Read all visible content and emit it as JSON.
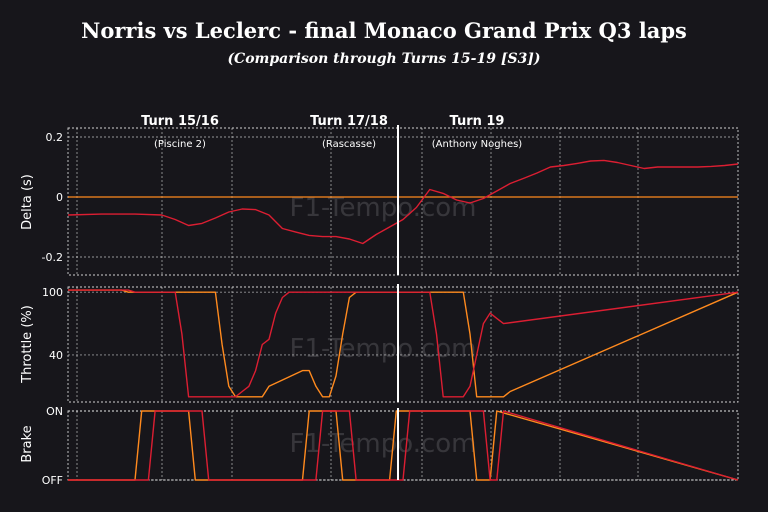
{
  "title": "Norris vs Leclerc - final Monaco Grand Prix Q3 laps",
  "subtitle": "(Comparison through Turns 15-19 [S3])",
  "watermark": "F1-Tempo.com",
  "colors": {
    "background": "#17161b",
    "norris": "#ff8a1e",
    "leclerc": "#dc1e32",
    "delta_zero": "#ff8a1e"
  },
  "chart_data": [
    {
      "type": "line",
      "panel": "delta",
      "ylabel": "Delta (s)",
      "yticks": [
        0.2,
        0,
        -0.2
      ],
      "ytick_labels": [
        "0.2",
        "0",
        "-0.2"
      ],
      "ylim": [
        -0.26,
        0.23
      ],
      "xlim": [
        0,
        100
      ],
      "reference_line": 0,
      "series": [
        {
          "color": "#dc1e32",
          "x": [
            0,
            5,
            10,
            14,
            16,
            18,
            20,
            22,
            24,
            26,
            28,
            30,
            32,
            34,
            36,
            38,
            40,
            42,
            44,
            46,
            48,
            50,
            52,
            54,
            56,
            58,
            60,
            62,
            64,
            66,
            68,
            70,
            72,
            74,
            76,
            78,
            80,
            82,
            84,
            86,
            88,
            90,
            92,
            94,
            96,
            98,
            100
          ],
          "y": [
            -0.06,
            -0.057,
            -0.057,
            -0.06,
            -0.075,
            -0.095,
            -0.088,
            -0.07,
            -0.05,
            -0.04,
            -0.042,
            -0.06,
            -0.105,
            -0.117,
            -0.128,
            -0.132,
            -0.132,
            -0.14,
            -0.155,
            -0.125,
            -0.1,
            -0.075,
            -0.035,
            0.025,
            0.012,
            -0.01,
            -0.02,
            -0.005,
            0.02,
            0.045,
            0.062,
            0.08,
            0.1,
            0.105,
            0.112,
            0.12,
            0.122,
            0.115,
            0.105,
            0.095,
            0.1,
            0.1,
            0.1,
            0.1,
            0.102,
            0.105,
            0.11
          ]
        }
      ]
    },
    {
      "type": "line",
      "panel": "throttle",
      "ylabel": "Throttle (%)",
      "yticks": [
        100,
        40
      ],
      "ytick_labels": [
        "100",
        "40"
      ],
      "ylim": [
        -5,
        105
      ],
      "xlim": [
        0,
        100
      ],
      "series": [
        {
          "color": "#ff8a1e",
          "x": [
            0,
            7,
            8,
            9,
            11,
            12,
            13,
            14,
            15,
            16,
            17,
            19,
            21,
            22,
            23,
            24,
            25,
            26,
            26.5,
            27,
            28,
            29,
            30,
            35,
            36,
            37,
            38,
            39,
            40,
            41,
            42,
            43,
            44,
            45,
            46,
            48,
            49,
            50,
            51,
            52,
            53,
            54,
            55,
            56,
            57,
            58,
            59,
            60,
            61,
            62,
            63,
            64,
            65,
            66,
            100
          ],
          "y": [
            102,
            102,
            102,
            100,
            100,
            100,
            100,
            100,
            100,
            100,
            100,
            100,
            100,
            100,
            50,
            10,
            0,
            0,
            0,
            0,
            0,
            0,
            10,
            25,
            25,
            10,
            0,
            0,
            20,
            60,
            95,
            100,
            100,
            100,
            100,
            100,
            100,
            100,
            100,
            100,
            100,
            100,
            100,
            100,
            100,
            100,
            100,
            60,
            0,
            0,
            0,
            0,
            0,
            5,
            100
          ]
        },
        {
          "color": "#dc1e32",
          "x": [
            0,
            8,
            9,
            10,
            12,
            13,
            14,
            16,
            17,
            18,
            19,
            20,
            21,
            22,
            23,
            24,
            25,
            26,
            27,
            28,
            29,
            30,
            31,
            32,
            33,
            34,
            35,
            36,
            38,
            41,
            44,
            46,
            47,
            48,
            49,
            50,
            52,
            54,
            55,
            56,
            57,
            58,
            59,
            60,
            61,
            62,
            63,
            64,
            65,
            100
          ],
          "y": [
            102,
            102,
            102,
            100,
            100,
            100,
            100,
            100,
            60,
            0,
            0,
            0,
            0,
            0,
            0,
            0,
            0,
            5,
            10,
            25,
            50,
            55,
            80,
            95,
            100,
            100,
            100,
            100,
            100,
            100,
            100,
            100,
            100,
            100,
            100,
            100,
            100,
            100,
            60,
            0,
            0,
            0,
            0,
            10,
            40,
            70,
            80,
            75,
            70,
            100
          ]
        }
      ]
    },
    {
      "type": "line",
      "panel": "brake",
      "ylabel": "Brake",
      "yticks": [
        1,
        0
      ],
      "ytick_labels": [
        "ON",
        "OFF"
      ],
      "ylim": [
        0,
        1
      ],
      "xlim": [
        0,
        100
      ],
      "series": [
        {
          "color": "#ff8a1e",
          "x": [
            0,
            10,
            11,
            18,
            19,
            35,
            36,
            40,
            41,
            48,
            49,
            60,
            61,
            63,
            64,
            100
          ],
          "y": [
            0,
            0,
            1,
            1,
            0,
            0,
            1,
            1,
            0,
            0,
            1,
            1,
            0,
            0,
            1,
            0
          ]
        },
        {
          "color": "#dc1e32",
          "x": [
            0,
            12,
            13,
            20,
            21,
            37,
            38,
            42,
            43,
            50,
            51,
            62,
            63,
            64,
            65,
            100
          ],
          "y": [
            0,
            0,
            1,
            1,
            0,
            0,
            1,
            1,
            0,
            0,
            1,
            1,
            0,
            0,
            1,
            0
          ]
        }
      ]
    }
  ],
  "turns": [
    {
      "label": "Turn 15/16",
      "sublabel": "(Piscine 2)"
    },
    {
      "label": "Turn 17/18",
      "sublabel": "(Rascasse)"
    },
    {
      "label": "Turn 19",
      "sublabel": "(Anthony Noghes)"
    }
  ]
}
